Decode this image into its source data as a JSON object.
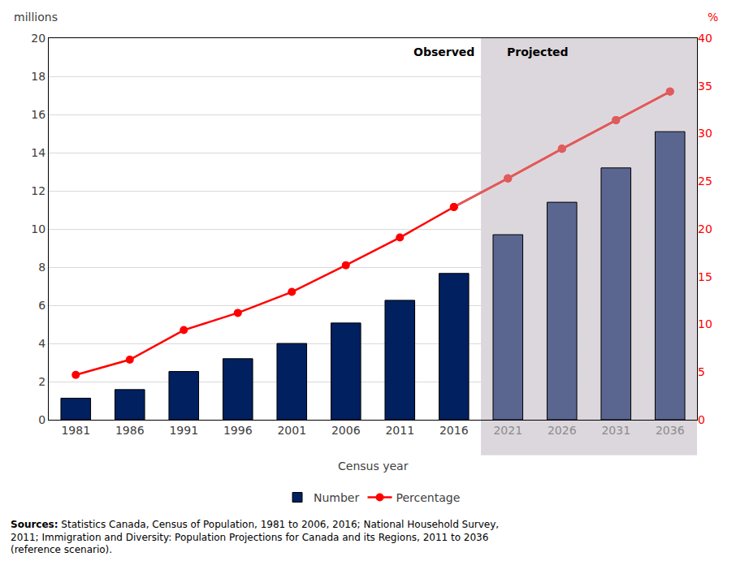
{
  "chart_data": {
    "type": "bar",
    "categories": [
      "1981",
      "1986",
      "1991",
      "1996",
      "2001",
      "2006",
      "2011",
      "2016",
      "2021",
      "2026",
      "2031",
      "2036"
    ],
    "xlabel": "Census year",
    "ylabel": "millions",
    "y2label": "%",
    "ylim": [
      0,
      20
    ],
    "yticks": [
      0,
      2,
      4,
      6,
      8,
      10,
      12,
      14,
      16,
      18,
      20
    ],
    "y2lim": [
      0,
      40
    ],
    "y2ticks": [
      0,
      5,
      10,
      15,
      20,
      25,
      30,
      35,
      40
    ],
    "grid": true,
    "legend": "bottom",
    "series": [
      {
        "name": "Number",
        "type": "bar",
        "colors": [
          "#002060",
          "#002060",
          "#002060",
          "#002060",
          "#002060",
          "#002060",
          "#002060",
          "#002060",
          "#5a6690",
          "#5a6690",
          "#5a6690",
          "#5a6690"
        ],
        "values": [
          1.13,
          1.58,
          2.53,
          3.2,
          4.0,
          5.07,
          6.26,
          7.67,
          9.7,
          11.4,
          13.2,
          15.1
        ]
      },
      {
        "name": "Percentage",
        "type": "line",
        "axis": "y2",
        "marker": "circle",
        "colors": [
          "#ff0000",
          "#ff0000",
          "#ff0000",
          "#ff0000",
          "#ff0000",
          "#ff0000",
          "#ff0000",
          "#ff0000",
          "#e05c5c",
          "#e05c5c",
          "#e05c5c",
          "#e05c5c"
        ],
        "values": [
          4.7,
          6.3,
          9.4,
          11.2,
          13.4,
          16.2,
          19.1,
          22.3,
          25.3,
          28.4,
          31.4,
          34.4
        ]
      }
    ],
    "regions": [
      {
        "label": "Observed",
        "from": "1981",
        "to": "2016"
      },
      {
        "label": "Projected",
        "from": "2021",
        "to": "2036",
        "color": "#dcd7dc"
      }
    ],
    "source_label": "Sources:",
    "source": [
      "Statistics Canada, Census of Population, 1981 to 2006, 2016; National Household Survey,",
      "2011; Immigration and Diversity: Population Projections for Canada and its Regions, 2011 to 2036",
      "(reference scenario)."
    ]
  }
}
